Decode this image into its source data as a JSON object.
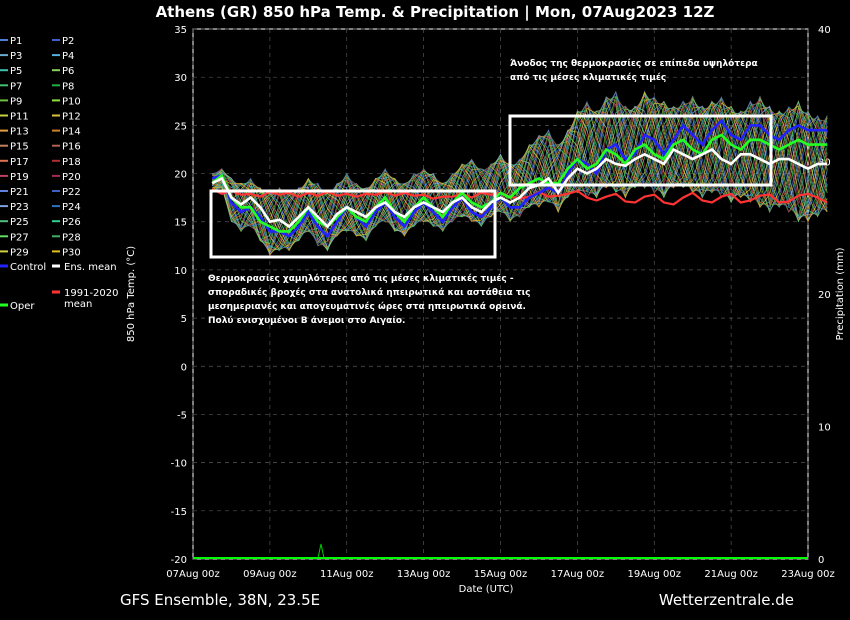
{
  "header": {
    "title": "Athens  (GR)  850 hPa Temp. & Precipitation | Mon, 07Aug2023 12Z"
  },
  "footer": {
    "model": "GFS Ensemble, 38N, 23.5E",
    "source": "Wetterzentrale.de"
  },
  "annotations": {
    "lower_text": [
      "Θερμοκρασίες χαμηλότερες από τις μέσες κλιματικές τιμές -",
      "σποραδικές βροχές στα ανατολικά ηπειρωτικά και αστάθεια τις",
      "μεσημεριανές και απογευματινές ώρες στα ηπειρωτικά ορεινά.",
      "Πολύ ενισχυμένοι Β άνεμοι στο Αιγαίο."
    ],
    "upper_text": [
      "Άνοδος της θερμοκρασίες σε επίπεδα υψηλότερα",
      "από τις μέσες κλιματικές τιμές"
    ]
  },
  "legend": {
    "members": [
      "P1",
      "P2",
      "P3",
      "P4",
      "P5",
      "P6",
      "P7",
      "P8",
      "P9",
      "P10",
      "P11",
      "P12",
      "P13",
      "P14",
      "P15",
      "P16",
      "P17",
      "P18",
      "P19",
      "P20",
      "P21",
      "P22",
      "P23",
      "P24",
      "P25",
      "P26",
      "P27",
      "P28",
      "P29",
      "P30"
    ],
    "member_colors": [
      "#4a7fd8",
      "#3a5fd0",
      "#66aacc",
      "#55b0e0",
      "#3cc0b0",
      "#88d060",
      "#40c070",
      "#20b040",
      "#70c040",
      "#90e040",
      "#c8d040",
      "#e0c040",
      "#e0a040",
      "#d08030",
      "#c08060",
      "#b06050",
      "#e07050",
      "#b03030",
      "#c04060",
      "#a03050",
      "#6080e0",
      "#4060c0",
      "#80a0e0",
      "#3070c0",
      "#50c080",
      "#30d090",
      "#60e060",
      "#40b060",
      "#d0d040",
      "#e0c020"
    ],
    "control": "Control",
    "ens_mean": "Ens. mean",
    "oper": "Oper",
    "clim": "1991-2020 mean",
    "colors": {
      "control": "#2222ff",
      "ens_mean": "#ffffff",
      "oper": "#22ff22",
      "clim": "#ff3333"
    }
  },
  "chart_data": {
    "type": "line",
    "title": "Athens  (GR)  850 hPa Temp. & Precipitation | Mon, 07Aug2023 12Z",
    "xlabel": "Date (UTC)",
    "ylabel": "850 hPa Temp. (°C)",
    "y2label": "Precipitation (mm)",
    "ylim": [
      -20,
      35
    ],
    "y2lim": [
      0,
      40
    ],
    "yticks": [
      -20,
      -15,
      -10,
      -5,
      0,
      5,
      10,
      15,
      20,
      25,
      30,
      35
    ],
    "y2ticks": [
      0,
      10,
      20,
      30,
      40
    ],
    "xlim": [
      "07Aug2023 00z",
      "23Aug2023 00z"
    ],
    "xticks": [
      "07Aug 00z",
      "09Aug 00z",
      "11Aug 00z",
      "13Aug 00z",
      "15Aug 00z",
      "17Aug 00z",
      "19Aug 00z",
      "21Aug 00z",
      "23Aug 00z"
    ],
    "grid": true,
    "legend_position": "left, outside plot",
    "time_step_hours": 6,
    "start": "07Aug2023 12z",
    "series": [
      {
        "name": "Ens. mean",
        "values": [
          19.0,
          19.5,
          17.5,
          16.8,
          17.5,
          16.5,
          15.0,
          15.2,
          14.5,
          15.5,
          16.5,
          15.5,
          14.5,
          15.8,
          16.5,
          16.0,
          15.5,
          16.5,
          17.0,
          16.0,
          15.5,
          16.5,
          17.0,
          16.5,
          16.0,
          17.0,
          17.5,
          16.5,
          16.0,
          17.0,
          17.5,
          17.0,
          17.5,
          18.5,
          18.8,
          19.5,
          18.0,
          19.5,
          20.5,
          20.0,
          20.5,
          21.5,
          21.0,
          20.8,
          21.5,
          22.0,
          21.5,
          21.0,
          22.5,
          22.0,
          21.5,
          22.0,
          22.5,
          21.5,
          21.0,
          22.0,
          22.0,
          21.5,
          21.0,
          21.5,
          21.5,
          21.0,
          20.5,
          21.0,
          21.0
        ]
      },
      {
        "name": "Control",
        "values": [
          19.5,
          19.8,
          17.0,
          16.0,
          16.5,
          15.5,
          14.0,
          14.0,
          13.5,
          14.5,
          16.0,
          14.5,
          13.5,
          15.0,
          16.5,
          15.5,
          14.5,
          16.0,
          17.0,
          15.5,
          14.5,
          16.0,
          17.0,
          16.0,
          15.0,
          16.5,
          17.5,
          16.0,
          15.5,
          16.5,
          17.5,
          16.5,
          16.5,
          17.5,
          18.0,
          18.5,
          18.0,
          20.0,
          21.5,
          21.0,
          20.0,
          22.5,
          23.0,
          21.5,
          22.0,
          24.0,
          23.5,
          22.0,
          23.5,
          25.0,
          24.0,
          23.0,
          24.5,
          25.5,
          24.0,
          23.5,
          25.0,
          25.0,
          24.0,
          23.5,
          24.5,
          25.0,
          24.5,
          24.5,
          24.5
        ]
      },
      {
        "name": "Oper",
        "values": [
          19.0,
          19.8,
          17.5,
          16.5,
          16.5,
          15.0,
          14.5,
          14.0,
          14.0,
          15.0,
          16.5,
          15.0,
          14.5,
          15.5,
          16.5,
          15.5,
          15.0,
          16.5,
          17.5,
          16.0,
          15.0,
          16.5,
          17.5,
          16.5,
          15.5,
          17.0,
          18.0,
          17.0,
          16.5,
          17.0,
          18.0,
          17.5,
          18.5,
          19.0,
          19.5,
          19.0,
          19.0,
          20.5,
          21.5,
          20.5,
          21.0,
          22.5,
          22.0,
          21.0,
          22.5,
          23.0,
          22.0,
          21.5,
          23.0,
          23.5,
          22.5,
          22.0,
          23.5,
          24.0,
          23.0,
          22.5,
          23.5,
          23.5,
          23.0,
          22.5,
          23.0,
          23.5,
          23.0,
          23.0,
          23.0
        ]
      },
      {
        "name": "1991-2020 mean",
        "values": [
          18.4,
          17.9,
          18.2,
          17.8,
          17.9,
          17.6,
          18.1,
          17.8,
          18.0,
          17.6,
          18.0,
          17.7,
          18.1,
          17.7,
          17.9,
          17.6,
          17.9,
          17.8,
          18.1,
          17.7,
          18.0,
          17.7,
          17.8,
          17.4,
          17.6,
          17.6,
          17.9,
          17.5,
          18.0,
          17.8,
          18.0,
          17.6,
          17.4,
          17.6,
          18.1,
          17.6,
          17.7,
          17.9,
          18.2,
          17.5,
          17.2,
          17.6,
          17.9,
          17.1,
          17.0,
          17.6,
          17.8,
          17.0,
          16.8,
          17.5,
          18.0,
          17.2,
          17.0,
          17.6,
          17.9,
          17.0,
          17.2,
          17.7,
          17.8,
          17.0,
          17.1,
          17.7,
          17.9,
          17.5,
          17.0
        ]
      }
    ],
    "members_range": {
      "low": [
        18.0,
        18.5,
        15.0,
        14.0,
        14.5,
        13.0,
        11.5,
        12.0,
        12.0,
        13.0,
        14.0,
        12.5,
        12.0,
        13.5,
        14.0,
        13.5,
        13.0,
        14.5,
        15.0,
        14.0,
        13.5,
        14.5,
        15.0,
        14.5,
        14.0,
        15.0,
        15.5,
        15.0,
        14.5,
        15.5,
        16.0,
        15.0,
        15.5,
        16.5,
        16.5,
        17.0,
        16.0,
        17.5,
        18.0,
        17.5,
        17.5,
        18.5,
        18.0,
        17.5,
        18.5,
        18.5,
        18.0,
        17.5,
        18.5,
        18.5,
        18.0,
        17.5,
        18.0,
        17.5,
        17.0,
        17.5,
        17.0,
        16.5,
        16.0,
        16.5,
        16.0,
        15.0,
        15.0,
        15.5,
        16.0
      ],
      "high": [
        20.0,
        20.5,
        19.5,
        19.0,
        19.5,
        18.5,
        18.0,
        18.5,
        18.0,
        18.5,
        19.5,
        19.0,
        18.0,
        19.0,
        20.0,
        19.0,
        18.5,
        19.5,
        20.5,
        19.5,
        19.0,
        20.0,
        20.5,
        20.0,
        19.0,
        20.0,
        21.0,
        21.5,
        20.5,
        21.0,
        22.0,
        21.0,
        21.5,
        23.0,
        24.0,
        24.5,
        23.0,
        24.5,
        26.5,
        27.5,
        26.5,
        28.0,
        28.5,
        27.0,
        27.0,
        28.5,
        28.0,
        27.5,
        27.0,
        27.5,
        28.0,
        27.0,
        27.5,
        28.0,
        27.0,
        26.5,
        27.5,
        28.0,
        27.0,
        26.5,
        27.0,
        27.5,
        26.5,
        26.0,
        26.0
      ]
    },
    "precip_note": "Precipitation near 0 mm throughout; small spike ~11Aug."
  }
}
